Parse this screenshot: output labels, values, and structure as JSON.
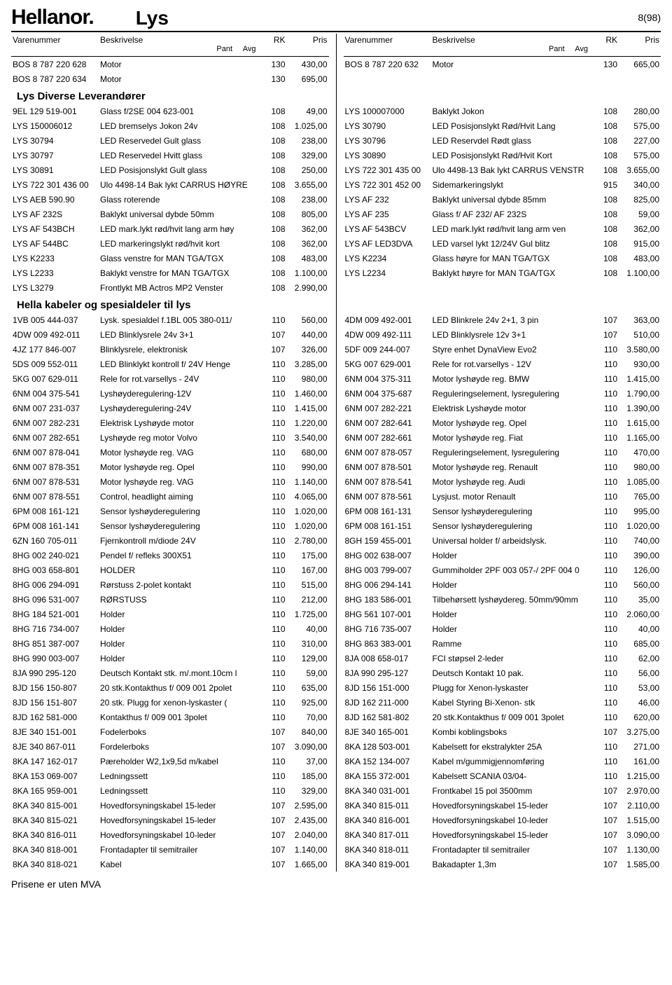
{
  "header": {
    "logo": "Hellanor.",
    "title": "Lys",
    "page_indicator": "8(98)"
  },
  "column_headers": {
    "varenummer": "Varenummer",
    "beskrivelse": "Beskrivelse",
    "pant": "Pant",
    "avg": "Avg",
    "rk": "RK",
    "pris": "Pris"
  },
  "footer": "Prisene er uten MVA",
  "left": [
    {
      "type": "row",
      "vn": "BOS 8 787 220 628",
      "desc": "Motor",
      "rk": "130",
      "pris": "430,00"
    },
    {
      "type": "row",
      "vn": "BOS 8 787 220 634",
      "desc": "Motor",
      "rk": "130",
      "pris": "695,00"
    },
    {
      "type": "section",
      "title": "Lys Diverse Leverandører"
    },
    {
      "type": "row",
      "vn": "9EL 129 519-001",
      "desc": "Glass f/2SE 004 623-001",
      "rk": "108",
      "pris": "49,00"
    },
    {
      "type": "row",
      "vn": "LYS 150006012",
      "desc": "LED bremselys Jokon 24v",
      "rk": "108",
      "pris": "1.025,00"
    },
    {
      "type": "row",
      "vn": "LYS 30794",
      "desc": "LED Reservedel Gult glass",
      "rk": "108",
      "pris": "238,00"
    },
    {
      "type": "row",
      "vn": "LYS 30797",
      "desc": "LED Reservedel Hvitt glass",
      "rk": "108",
      "pris": "329,00"
    },
    {
      "type": "row",
      "vn": "LYS 30891",
      "desc": "LED Posisjonslykt Gult glass",
      "rk": "108",
      "pris": "250,00"
    },
    {
      "type": "row",
      "vn": "LYS 722 301 436 00",
      "desc": "Ulo 4498-14 Bak lykt  CARRUS HØYRE",
      "rk": "108",
      "pris": "3.655,00"
    },
    {
      "type": "row",
      "vn": "LYS AEB 590.90",
      "desc": "Glass roterende",
      "rk": "108",
      "pris": "238,00"
    },
    {
      "type": "row",
      "vn": "LYS AF 232S",
      "desc": "Baklykt universal dybde 50mm",
      "rk": "108",
      "pris": "805,00"
    },
    {
      "type": "row",
      "vn": "LYS AF 543BCH",
      "desc": "LED mark.lykt rød/hvit lang arm høy",
      "rk": "108",
      "pris": "362,00"
    },
    {
      "type": "row",
      "vn": "LYS AF 544BC",
      "desc": "LED markeringslykt rød/hvit kort",
      "rk": "108",
      "pris": "362,00"
    },
    {
      "type": "row",
      "vn": "LYS K2233",
      "desc": "Glass venstre for MAN TGA/TGX",
      "rk": "108",
      "pris": "483,00"
    },
    {
      "type": "row",
      "vn": "LYS L2233",
      "desc": "Baklykt venstre for MAN TGA/TGX",
      "rk": "108",
      "pris": "1.100,00"
    },
    {
      "type": "row",
      "vn": "LYS L3279",
      "desc": "Frontlykt MB Actros MP2 Venster",
      "rk": "108",
      "pris": "2.990,00"
    },
    {
      "type": "section",
      "title": "Hella kabeler og spesialdeler til lys"
    },
    {
      "type": "row",
      "vn": "1VB 005 444-037",
      "desc": "Lysk. spesialdel f.1BL 005 380-011/",
      "rk": "110",
      "pris": "560,00"
    },
    {
      "type": "row",
      "vn": "4DW 009 492-011",
      "desc": "LED Blinklysrele 24v 3+1",
      "rk": "107",
      "pris": "440,00"
    },
    {
      "type": "row",
      "vn": "4JZ 177 846-007",
      "desc": "Blinklysrele, elektronisk",
      "rk": "107",
      "pris": "326,00"
    },
    {
      "type": "row",
      "vn": "5DS 009 552-011",
      "desc": "LED Blinklykt kontroll f/ 24V Henge",
      "rk": "110",
      "pris": "3.285,00"
    },
    {
      "type": "row",
      "vn": "5KG 007 629-011",
      "desc": "Rele for rot.varsellys - 24V",
      "rk": "110",
      "pris": "980,00"
    },
    {
      "type": "row",
      "vn": "6NM 004 375-541",
      "desc": "Lyshøyderegulering-12V",
      "rk": "110",
      "pris": "1.460,00"
    },
    {
      "type": "row",
      "vn": "6NM 007 231-037",
      "desc": "Lyshøyderegulering-24V",
      "rk": "110",
      "pris": "1.415,00"
    },
    {
      "type": "row",
      "vn": "6NM 007 282-231",
      "desc": "Elektrisk Lyshøyde motor",
      "rk": "110",
      "pris": "1.220,00"
    },
    {
      "type": "row",
      "vn": "6NM 007 282-651",
      "desc": "Lyshøyde reg motor Volvo",
      "rk": "110",
      "pris": "3.540,00"
    },
    {
      "type": "row",
      "vn": "6NM 007 878-041",
      "desc": "Motor lyshøyde reg. VAG",
      "rk": "110",
      "pris": "680,00"
    },
    {
      "type": "row",
      "vn": "6NM 007 878-351",
      "desc": "Motor lyshøyde reg. Opel",
      "rk": "110",
      "pris": "990,00"
    },
    {
      "type": "row",
      "vn": "6NM 007 878-531",
      "desc": "Motor lyshøyde reg. VAG",
      "rk": "110",
      "pris": "1.140,00"
    },
    {
      "type": "row",
      "vn": "6NM 007 878-551",
      "desc": "Control, headlight aiming",
      "rk": "110",
      "pris": "4.065,00"
    },
    {
      "type": "row",
      "vn": "6PM 008 161-121",
      "desc": "Sensor lyshøyderegulering",
      "rk": "110",
      "pris": "1.020,00"
    },
    {
      "type": "row",
      "vn": "6PM 008 161-141",
      "desc": "Sensor lyshøyderegulering",
      "rk": "110",
      "pris": "1.020,00"
    },
    {
      "type": "row",
      "vn": "6ZN 160 705-011",
      "desc": "Fjernkontroll m/diode 24V",
      "rk": "110",
      "pris": "2.780,00"
    },
    {
      "type": "row",
      "vn": "8HG 002 240-021",
      "desc": "Pendel f/ refleks 300X51",
      "rk": "110",
      "pris": "175,00"
    },
    {
      "type": "row",
      "vn": "8HG 003 658-801",
      "desc": "HOLDER",
      "rk": "110",
      "pris": "167,00"
    },
    {
      "type": "row",
      "vn": "8HG 006 294-091",
      "desc": "Rørstuss 2-polet kontakt",
      "rk": "110",
      "pris": "515,00"
    },
    {
      "type": "row",
      "vn": "8HG 096 531-007",
      "desc": "RØRSTUSS",
      "rk": "110",
      "pris": "212,00"
    },
    {
      "type": "row",
      "vn": "8HG 184 521-001",
      "desc": "Holder",
      "rk": "110",
      "pris": "1.725,00"
    },
    {
      "type": "row",
      "vn": "8HG 716 734-007",
      "desc": "Holder",
      "rk": "110",
      "pris": "40,00"
    },
    {
      "type": "row",
      "vn": "8HG 851 387-007",
      "desc": "Holder",
      "rk": "110",
      "pris": "310,00"
    },
    {
      "type": "row",
      "vn": "8HG 990 003-007",
      "desc": "Holder",
      "rk": "110",
      "pris": "129,00"
    },
    {
      "type": "row",
      "vn": "8JA 990 295-120",
      "desc": "Deutsch Kontakt stk. m/.mont.10cm l",
      "rk": "110",
      "pris": "59,00"
    },
    {
      "type": "row",
      "vn": "8JD 156 150-807",
      "desc": "20 stk.Kontakthus f/ 009 001 2polet",
      "rk": "110",
      "pris": "635,00"
    },
    {
      "type": "row",
      "vn": "8JD 156 151-807",
      "desc": "20 stk. Plugg for xenon-lyskaster (",
      "rk": "110",
      "pris": "925,00"
    },
    {
      "type": "row",
      "vn": "8JD 162 581-000",
      "desc": "Kontakthus f/ 009 001 3polet",
      "rk": "110",
      "pris": "70,00"
    },
    {
      "type": "row",
      "vn": "8JE 340 151-001",
      "desc": "Fodelerboks",
      "rk": "107",
      "pris": "840,00"
    },
    {
      "type": "row",
      "vn": "8JE 340 867-011",
      "desc": "Fordelerboks",
      "rk": "107",
      "pris": "3.090,00"
    },
    {
      "type": "row",
      "vn": "8KA 147 162-017",
      "desc": "Pæreholder W2,1x9,5d m/kabel",
      "rk": "110",
      "pris": "37,00"
    },
    {
      "type": "row",
      "vn": "8KA 153 069-007",
      "desc": "Ledningssett",
      "rk": "110",
      "pris": "185,00"
    },
    {
      "type": "row",
      "vn": "8KA 165 959-001",
      "desc": "Ledningssett",
      "rk": "110",
      "pris": "329,00"
    },
    {
      "type": "row",
      "vn": "8KA 340 815-001",
      "desc": "Hovedforsyningskabel 15-leder",
      "rk": "107",
      "pris": "2.595,00"
    },
    {
      "type": "row",
      "vn": "8KA 340 815-021",
      "desc": "Hovedforsyningskabel 15-leder",
      "rk": "107",
      "pris": "2.435,00"
    },
    {
      "type": "row",
      "vn": "8KA 340 816-011",
      "desc": "Hovedforsyningskabel 10-leder",
      "rk": "107",
      "pris": "2.040,00"
    },
    {
      "type": "row",
      "vn": "8KA 340 818-001",
      "desc": "Frontadapter til semitrailer",
      "rk": "107",
      "pris": "1.140,00"
    },
    {
      "type": "row",
      "vn": "8KA 340 818-021",
      "desc": "Kabel",
      "rk": "107",
      "pris": "1.665,00"
    }
  ],
  "right": [
    {
      "type": "row",
      "vn": "BOS 8 787 220 632",
      "desc": "Motor",
      "rk": "130",
      "pris": "665,00"
    },
    {
      "type": "blank"
    },
    {
      "type": "section",
      "title": ""
    },
    {
      "type": "row",
      "vn": "LYS 100007000",
      "desc": "Baklykt Jokon",
      "rk": "108",
      "pris": "280,00"
    },
    {
      "type": "row",
      "vn": "LYS 30790",
      "desc": "LED Posisjonslykt Rød/Hvit Lang",
      "rk": "108",
      "pris": "575,00"
    },
    {
      "type": "row",
      "vn": "LYS 30796",
      "desc": "LED Reservdel Rødt glass",
      "rk": "108",
      "pris": "227,00"
    },
    {
      "type": "row",
      "vn": "LYS 30890",
      "desc": "LED Posisjonslykt Rød/Hvit Kort",
      "rk": "108",
      "pris": "575,00"
    },
    {
      "type": "row",
      "vn": "LYS 722 301 435 00",
      "desc": "Ulo 4498-13 Bak lykt  CARRUS VENSTR",
      "rk": "108",
      "pris": "3.655,00"
    },
    {
      "type": "row",
      "vn": "LYS 722 301 452 00",
      "desc": "Sidemarkeringslykt",
      "rk": "915",
      "pris": "340,00"
    },
    {
      "type": "row",
      "vn": "LYS AF 232",
      "desc": "Baklykt universal dybde 85mm",
      "rk": "108",
      "pris": "825,00"
    },
    {
      "type": "row",
      "vn": "LYS AF 235",
      "desc": "Glass f/ AF 232/ AF 232S",
      "rk": "108",
      "pris": "59,00"
    },
    {
      "type": "row",
      "vn": "LYS AF 543BCV",
      "desc": "LED mark.lykt rød/hvit lang arm ven",
      "rk": "108",
      "pris": "362,00"
    },
    {
      "type": "row",
      "vn": "LYS AF LED3DVA",
      "desc": "LED varsel lykt 12/24V Gul blitz",
      "rk": "108",
      "pris": "915,00"
    },
    {
      "type": "row",
      "vn": "LYS K2234",
      "desc": "Glass høyre for MAN TGA/TGX",
      "rk": "108",
      "pris": "483,00"
    },
    {
      "type": "row",
      "vn": "LYS L2234",
      "desc": "Baklykt høyre for MAN TGA/TGX",
      "rk": "108",
      "pris": "1.100,00"
    },
    {
      "type": "blank"
    },
    {
      "type": "section",
      "title": ""
    },
    {
      "type": "row",
      "vn": "4DM 009 492-001",
      "desc": "LED Blinkrele 24v 2+1, 3 pin",
      "rk": "107",
      "pris": "363,00"
    },
    {
      "type": "row",
      "vn": "4DW 009 492-111",
      "desc": "LED Blinklysrele 12v 3+1",
      "rk": "107",
      "pris": "510,00"
    },
    {
      "type": "row",
      "vn": "5DF 009 244-007",
      "desc": "Styre enhet DynaView Evo2",
      "rk": "110",
      "pris": "3.580,00"
    },
    {
      "type": "row",
      "vn": "5KG 007 629-001",
      "desc": "Rele for rot.varsellys - 12V",
      "rk": "110",
      "pris": "930,00"
    },
    {
      "type": "row",
      "vn": "6NM 004 375-311",
      "desc": "Motor lyshøyde reg. BMW",
      "rk": "110",
      "pris": "1.415,00"
    },
    {
      "type": "row",
      "vn": "6NM 004 375-687",
      "desc": "Reguleringselement, lysregulering",
      "rk": "110",
      "pris": "1.790,00"
    },
    {
      "type": "row",
      "vn": "6NM 007 282-221",
      "desc": "Elektrisk Lyshøyde motor",
      "rk": "110",
      "pris": "1.390,00"
    },
    {
      "type": "row",
      "vn": "6NM 007 282-641",
      "desc": "Motor lyshøyde reg. Opel",
      "rk": "110",
      "pris": "1.615,00"
    },
    {
      "type": "row",
      "vn": "6NM 007 282-661",
      "desc": "Motor lyshøyde reg. Fiat",
      "rk": "110",
      "pris": "1.165,00"
    },
    {
      "type": "row",
      "vn": "6NM 007 878-057",
      "desc": "Reguleringselement, lysregulering",
      "rk": "110",
      "pris": "470,00"
    },
    {
      "type": "row",
      "vn": "6NM 007 878-501",
      "desc": "Motor lyshøyde reg. Renault",
      "rk": "110",
      "pris": "980,00"
    },
    {
      "type": "row",
      "vn": "6NM 007 878-541",
      "desc": "Motor lyshøyde reg. Audi",
      "rk": "110",
      "pris": "1.085,00"
    },
    {
      "type": "row",
      "vn": "6NM 007 878-561",
      "desc": "Lysjust. motor Renault",
      "rk": "110",
      "pris": "765,00"
    },
    {
      "type": "row",
      "vn": "6PM 008 161-131",
      "desc": "Sensor lyshøyderegulering",
      "rk": "110",
      "pris": "995,00"
    },
    {
      "type": "row",
      "vn": "6PM 008 161-151",
      "desc": "Sensor lyshøyderegulering",
      "rk": "110",
      "pris": "1.020,00"
    },
    {
      "type": "row",
      "vn": "8GH 159 455-001",
      "desc": "Universal holder f/ arbeidslysk.",
      "rk": "110",
      "pris": "740,00"
    },
    {
      "type": "row",
      "vn": "8HG 002 638-007",
      "desc": "Holder",
      "rk": "110",
      "pris": "390,00"
    },
    {
      "type": "row",
      "vn": "8HG 003 799-007",
      "desc": "Gummiholder 2PF 003 057-/ 2PF 004 0",
      "rk": "110",
      "pris": "126,00"
    },
    {
      "type": "row",
      "vn": "8HG 006 294-141",
      "desc": "Holder",
      "rk": "110",
      "pris": "560,00"
    },
    {
      "type": "row",
      "vn": "8HG 183 586-001",
      "desc": "Tilbehørsett lyshøydereg. 50mm/90mm",
      "rk": "110",
      "pris": "35,00"
    },
    {
      "type": "row",
      "vn": "8HG 561 107-001",
      "desc": "Holder",
      "rk": "110",
      "pris": "2.060,00"
    },
    {
      "type": "row",
      "vn": "8HG 716 735-007",
      "desc": "Holder",
      "rk": "110",
      "pris": "40,00"
    },
    {
      "type": "row",
      "vn": "8HG 863 383-001",
      "desc": "Ramme",
      "rk": "110",
      "pris": "685,00"
    },
    {
      "type": "row",
      "vn": "8JA 008 658-017",
      "desc": "FCI støpsel 2-leder",
      "rk": "110",
      "pris": "62,00"
    },
    {
      "type": "row",
      "vn": "8JA 990 295-127",
      "desc": "Deutsch  Kontakt 10 pak.",
      "rk": "110",
      "pris": "56,00"
    },
    {
      "type": "row",
      "vn": "8JD 156 151-000",
      "desc": "Plugg for Xenon-lyskaster",
      "rk": "110",
      "pris": "53,00"
    },
    {
      "type": "row",
      "vn": "8JD 162 211-000",
      "desc": "Kabel Styring Bi-Xenon- stk",
      "rk": "110",
      "pris": "46,00"
    },
    {
      "type": "row",
      "vn": "8JD 162 581-802",
      "desc": "20 stk.Kontakthus f/ 009 001 3polet",
      "rk": "110",
      "pris": "620,00"
    },
    {
      "type": "row",
      "vn": "8JE 340 165-001",
      "desc": "Kombi koblingsboks",
      "rk": "107",
      "pris": "3.275,00"
    },
    {
      "type": "row",
      "vn": "8KA 128 503-001",
      "desc": "Kabelsett for ekstralykter 25A",
      "rk": "110",
      "pris": "271,00"
    },
    {
      "type": "row",
      "vn": "8KA 152 134-007",
      "desc": "Kabel m/gummigjennomføring",
      "rk": "110",
      "pris": "161,00"
    },
    {
      "type": "row",
      "vn": "8KA 155 372-001",
      "desc": "Kabelsett SCANIA 03/04-",
      "rk": "110",
      "pris": "1.215,00"
    },
    {
      "type": "row",
      "vn": "8KA 340 031-001",
      "desc": "Frontkabel 15 pol 3500mm",
      "rk": "107",
      "pris": "2.970,00"
    },
    {
      "type": "row",
      "vn": "8KA 340 815-011",
      "desc": "Hovedforsyningskabel 15-leder",
      "rk": "107",
      "pris": "2.110,00"
    },
    {
      "type": "row",
      "vn": "8KA 340 816-001",
      "desc": "Hovedforsyningskabel 10-leder",
      "rk": "107",
      "pris": "1.515,00"
    },
    {
      "type": "row",
      "vn": "8KA 340 817-011",
      "desc": "Hovedforsyningskabel 15-leder",
      "rk": "107",
      "pris": "3.090,00"
    },
    {
      "type": "row",
      "vn": "8KA 340 818-011",
      "desc": "Frontadapter til semitrailer",
      "rk": "107",
      "pris": "1.130,00"
    },
    {
      "type": "row",
      "vn": "8KA 340 819-001",
      "desc": "Bakadapter 1,3m",
      "rk": "107",
      "pris": "1.585,00"
    }
  ]
}
